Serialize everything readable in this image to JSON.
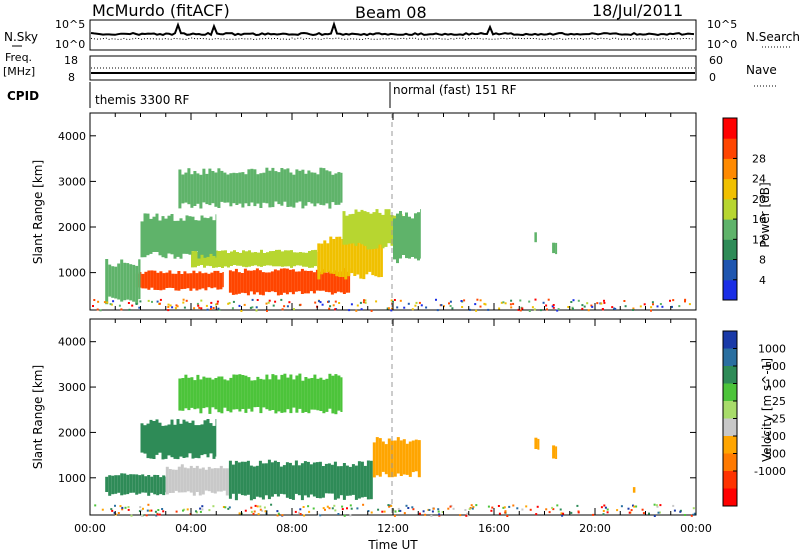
{
  "header": {
    "station": "McMurdo (fitACF)",
    "beam": "Beam 08",
    "date": "18/Jul/2011"
  },
  "panels": {
    "nsky": {
      "left_label": "N.Sky",
      "left_ticks": [
        "10^5",
        "10^0"
      ],
      "right_label": "N.Search",
      "right_ticks": [
        "10^5",
        "10^0"
      ]
    },
    "freq": {
      "left_label": "Freq.",
      "left_unit": "[MHz]",
      "left_ticks": [
        "18",
        "8"
      ],
      "right_label": "Nave",
      "right_ticks": [
        "60",
        "0"
      ]
    },
    "cpid": {
      "label": "CPID",
      "segments": [
        {
          "name": "themis 3300 RF",
          "start": 0
        },
        {
          "name": "normal (fast) 151 RF",
          "start": 12
        }
      ]
    }
  },
  "chart_data": [
    {
      "type": "heatmap",
      "title": "Power",
      "xlabel": "",
      "ylabel": "Slant Range [km]",
      "xlim": [
        0,
        24
      ],
      "ylim": [
        180,
        4500
      ],
      "yticks": [
        "1000",
        "2000",
        "3000",
        "4000"
      ],
      "colorbar_label": "Power [dB]",
      "colorbar_ticks": [
        "4",
        "8",
        "12",
        "16",
        "20",
        "24",
        "28"
      ],
      "colorbar_colors": [
        "#1a2ee6",
        "#1f56b0",
        "#2e8b57",
        "#5fb36a",
        "#b7d630",
        "#f0c000",
        "#ff8a00",
        "#ff4500",
        "#ff0000"
      ],
      "cells": [
        {
          "t": [
            1.8,
            5.3
          ],
          "r": [
            600,
            1050
          ],
          "value": 26
        },
        {
          "t": [
            5.5,
            10.3
          ],
          "r": [
            500,
            1100
          ],
          "value": 26
        },
        {
          "t": [
            9.0,
            11.6
          ],
          "r": [
            850,
            1800
          ],
          "value": 20
        },
        {
          "t": [
            4.0,
            9.0
          ],
          "r": [
            1100,
            1500
          ],
          "value": 14
        },
        {
          "t": [
            0.6,
            2.0
          ],
          "r": [
            300,
            1300
          ],
          "value": 9
        },
        {
          "t": [
            2.0,
            5.0
          ],
          "r": [
            1300,
            2300
          ],
          "value": 11
        },
        {
          "t": [
            3.5,
            10.0
          ],
          "r": [
            2400,
            3300
          ],
          "value": 12
        },
        {
          "t": [
            10.0,
            12.5
          ],
          "r": [
            1500,
            2400
          ],
          "value": 14
        },
        {
          "t": [
            12.0,
            13.1
          ],
          "r": [
            1200,
            2400
          ],
          "value": 9
        },
        {
          "t": [
            17.6,
            17.7
          ],
          "r": [
            1650,
            1900
          ],
          "value": 9
        },
        {
          "t": [
            18.3,
            18.5
          ],
          "r": [
            1400,
            1700
          ],
          "value": 12
        }
      ]
    },
    {
      "type": "heatmap",
      "title": "Velocity",
      "xlabel": "Time UT",
      "ylabel": "Slant Range [km]",
      "xlim": [
        0,
        24
      ],
      "ylim": [
        180,
        4500
      ],
      "xticks": [
        "00:00",
        "04:00",
        "08:00",
        "12:00",
        "16:00",
        "20:00",
        "00:00"
      ],
      "yticks": [
        "1000",
        "2000",
        "3000",
        "4000"
      ],
      "colorbar_label": "Velocity [m s^-1]",
      "colorbar_ticks": [
        "1000",
        "500",
        "100",
        "25",
        "-25",
        "-100",
        "-500",
        "-1000"
      ],
      "colorbar_colors": [
        "#1a3aa8",
        "#2a6fa0",
        "#2e8b57",
        "#4cc43a",
        "#a8dc6a",
        "#c8c8c8",
        "#ffa500",
        "#ff7a00",
        "#ff3300",
        "#ff0000"
      ],
      "cells": [
        {
          "t": [
            0.6,
            3.0
          ],
          "r": [
            600,
            1100
          ],
          "value": 150
        },
        {
          "t": [
            3.0,
            5.5
          ],
          "r": [
            600,
            1300
          ],
          "value": -80
        },
        {
          "t": [
            5.5,
            11.2
          ],
          "r": [
            500,
            1400
          ],
          "value": 300
        },
        {
          "t": [
            11.2,
            13.1
          ],
          "r": [
            1000,
            1900
          ],
          "value": -150
        },
        {
          "t": [
            2.0,
            5.0
          ],
          "r": [
            1400,
            2300
          ],
          "value": 200
        },
        {
          "t": [
            3.5,
            10.0
          ],
          "r": [
            2400,
            3300
          ],
          "value": 80
        },
        {
          "t": [
            17.6,
            17.8
          ],
          "r": [
            1600,
            1900
          ],
          "value": -150
        },
        {
          "t": [
            18.3,
            18.5
          ],
          "r": [
            1400,
            1750
          ],
          "value": -300
        },
        {
          "t": [
            21.5,
            21.6
          ],
          "r": [
            650,
            800
          ],
          "value": -150
        }
      ]
    }
  ]
}
